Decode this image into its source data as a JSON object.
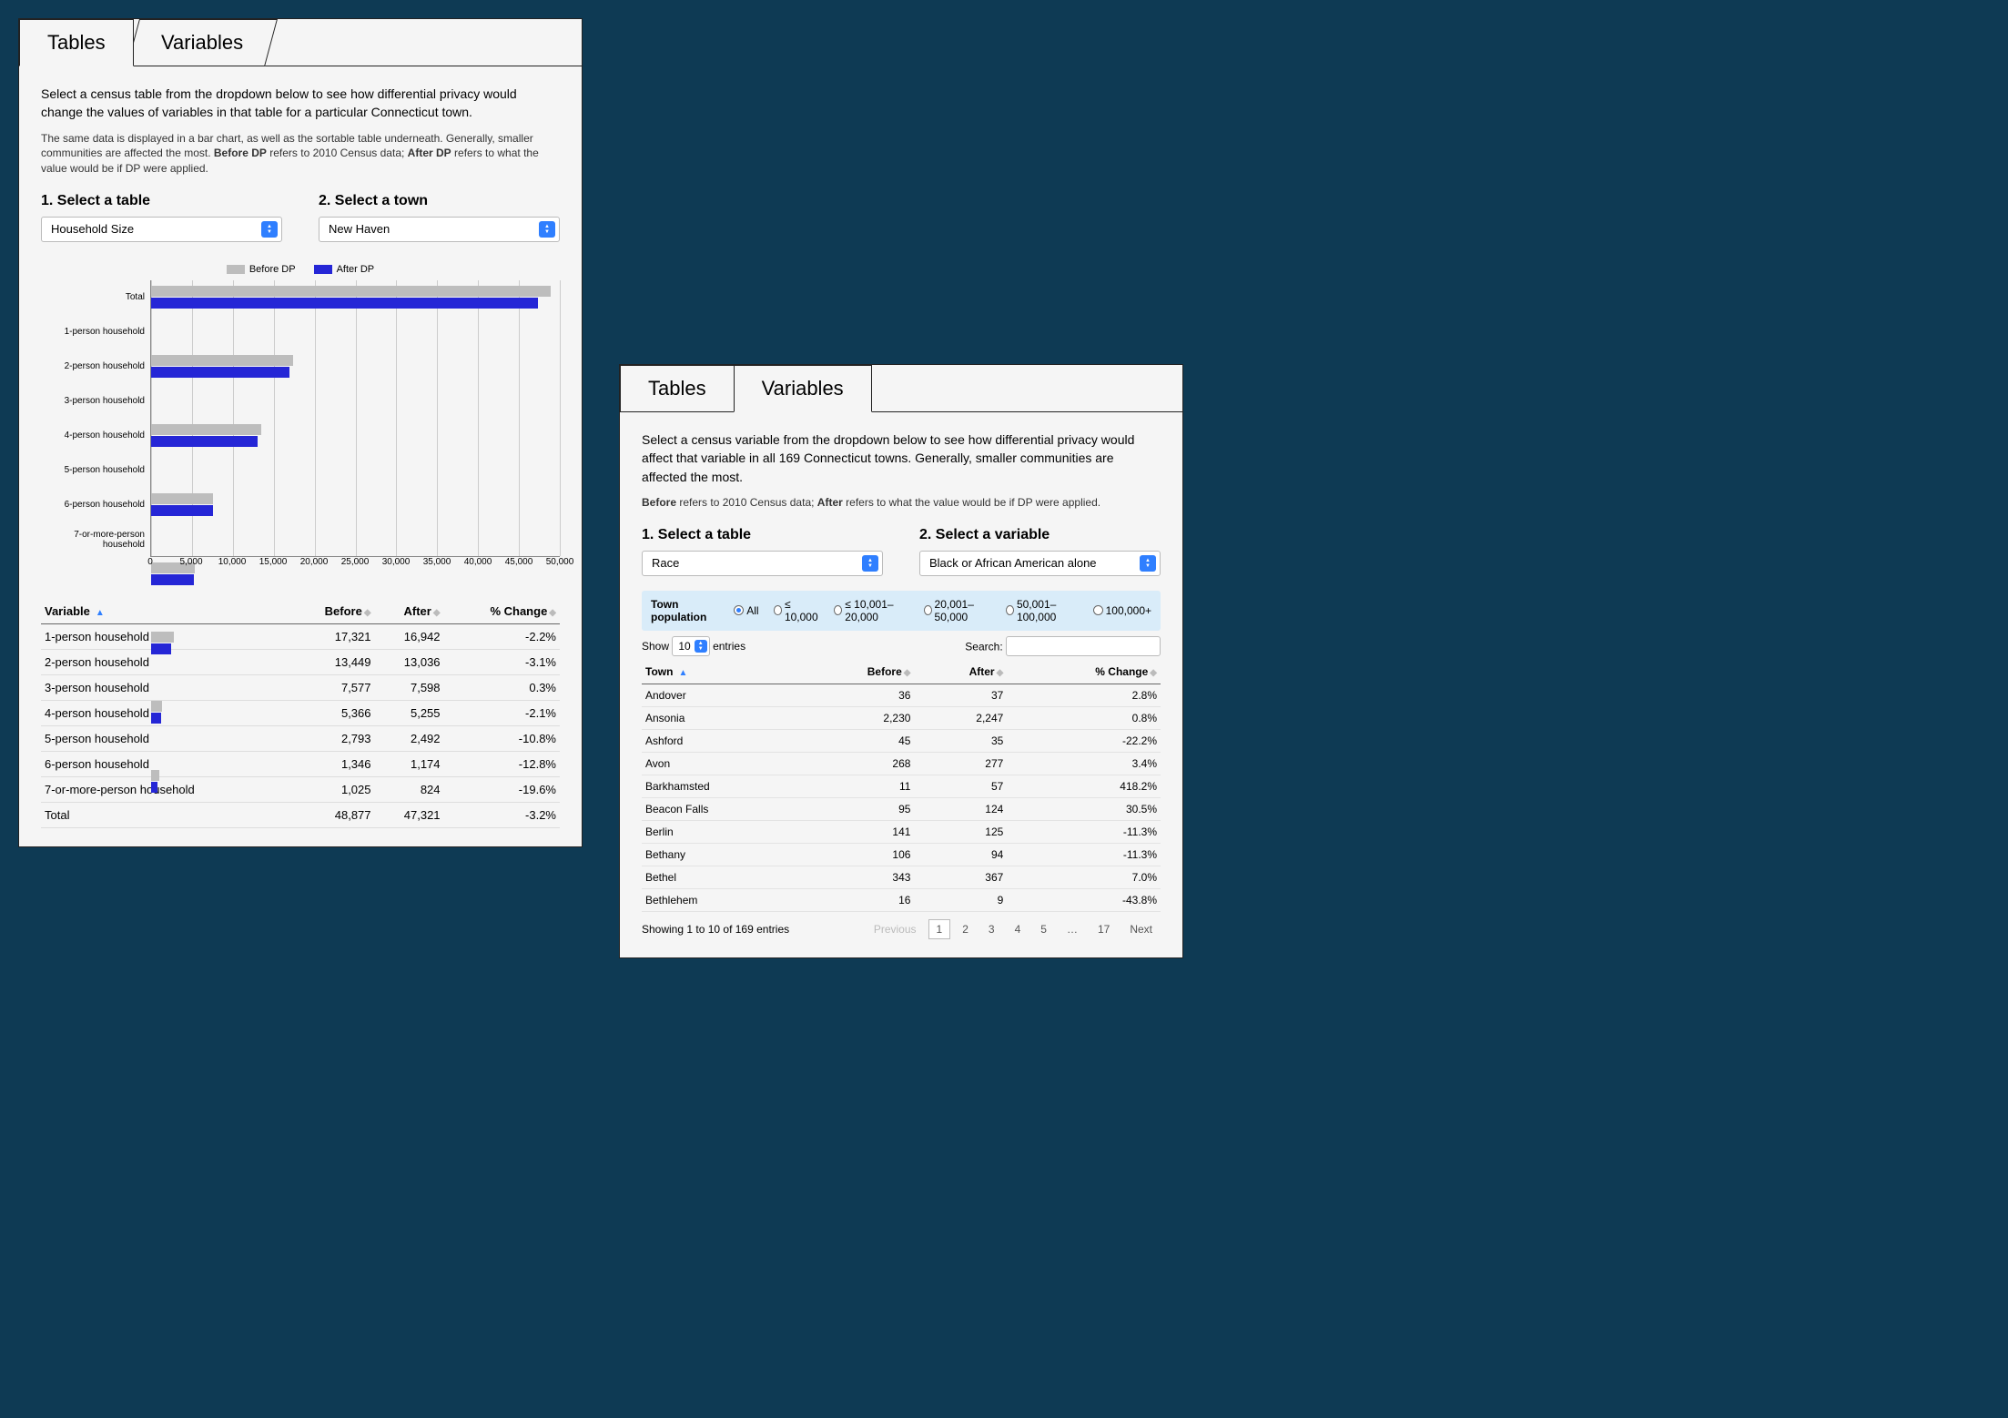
{
  "colors": {
    "page_bg": "#0e3a54",
    "panel_bg": "#f5f5f5",
    "before": "#bdbdbd",
    "after": "#2526d6",
    "accent": "#2f7fff",
    "grid": "#cccccc",
    "filter_bg": "#d9ecf9"
  },
  "left": {
    "tabs": {
      "active": "Tables",
      "inactive": "Variables"
    },
    "intro": "Select a census table from the dropdown below to see how differential privacy would change the values of variables in that table for a particular Connecticut town.",
    "intro_sub_pre": "The same data is displayed in a bar chart, as well as the sortable table underneath. Generally, smaller communities are affected the most. ",
    "intro_sub_b1": "Before DP",
    "intro_sub_mid": " refers to 2010 Census data; ",
    "intro_sub_b2": "After DP",
    "intro_sub_post": " refers to what the value would be if DP were applied.",
    "step1": "1. Select a table",
    "step2": "2. Select a town",
    "select_table": "Household Size",
    "select_town": "New Haven",
    "legend": {
      "before": "Before DP",
      "after": "After DP"
    },
    "chart": {
      "type": "bar-horizontal-grouped",
      "xmax": 50000,
      "xtick_step": 5000,
      "xticks": [
        "0",
        "5,000",
        "10,000",
        "15,000",
        "20,000",
        "25,000",
        "30,000",
        "35,000",
        "40,000",
        "45,000",
        "50,000"
      ],
      "rows": [
        {
          "label": "Total",
          "before": 48877,
          "after": 47321
        },
        {
          "label": "1-person household",
          "before": 17321,
          "after": 16942
        },
        {
          "label": "2-person household",
          "before": 13449,
          "after": 13036
        },
        {
          "label": "3-person household",
          "before": 7577,
          "after": 7598
        },
        {
          "label": "4-person household",
          "before": 5366,
          "after": 5255
        },
        {
          "label": "5-person household",
          "before": 2793,
          "after": 2492
        },
        {
          "label": "6-person household",
          "before": 1346,
          "after": 1174
        },
        {
          "label": "7-or-more-person household",
          "before": 1025,
          "after": 824
        }
      ]
    },
    "table": {
      "columns": [
        "Variable",
        "Before",
        "After",
        "% Change"
      ],
      "sort_col": 0,
      "rows": [
        [
          "1-person household",
          "17,321",
          "16,942",
          "-2.2%"
        ],
        [
          "2-person household",
          "13,449",
          "13,036",
          "-3.1%"
        ],
        [
          "3-person household",
          "7,577",
          "7,598",
          "0.3%"
        ],
        [
          "4-person household",
          "5,366",
          "5,255",
          "-2.1%"
        ],
        [
          "5-person household",
          "2,793",
          "2,492",
          "-10.8%"
        ],
        [
          "6-person household",
          "1,346",
          "1,174",
          "-12.8%"
        ],
        [
          "7-or-more-person household",
          "1,025",
          "824",
          "-19.6%"
        ],
        [
          "Total",
          "48,877",
          "47,321",
          "-3.2%"
        ]
      ]
    }
  },
  "right": {
    "tabs": {
      "inactive": "Tables",
      "active": "Variables"
    },
    "intro": "Select a census variable from the dropdown below to see how differential privacy would affect that variable in all 169 Connecticut towns. Generally, smaller communities are affected the most.",
    "intro_sub_b1": "Before",
    "intro_sub_mid": " refers to 2010 Census data; ",
    "intro_sub_b2": "After",
    "intro_sub_post": " refers to what the value would be if DP were applied.",
    "step1": "1. Select a table",
    "step2": "2. Select a variable",
    "select_table": "Race",
    "select_variable": "Black or African American alone",
    "filter": {
      "label": "Town population",
      "options": [
        "All",
        "≤ 10,000",
        "≤ 10,001–20,000",
        "20,001–50,000",
        "50,001–100,000",
        "100,000+"
      ],
      "selected": 0
    },
    "show_label_pre": "Show",
    "show_value": "10",
    "show_label_post": "entries",
    "search_label": "Search:",
    "table": {
      "columns": [
        "Town",
        "Before",
        "After",
        "% Change"
      ],
      "sort_col": 0,
      "rows": [
        [
          "Andover",
          "36",
          "37",
          "2.8%"
        ],
        [
          "Ansonia",
          "2,230",
          "2,247",
          "0.8%"
        ],
        [
          "Ashford",
          "45",
          "35",
          "-22.2%"
        ],
        [
          "Avon",
          "268",
          "277",
          "3.4%"
        ],
        [
          "Barkhamsted",
          "11",
          "57",
          "418.2%"
        ],
        [
          "Beacon Falls",
          "95",
          "124",
          "30.5%"
        ],
        [
          "Berlin",
          "141",
          "125",
          "-11.3%"
        ],
        [
          "Bethany",
          "106",
          "94",
          "-11.3%"
        ],
        [
          "Bethel",
          "343",
          "367",
          "7.0%"
        ],
        [
          "Bethlehem",
          "16",
          "9",
          "-43.8%"
        ]
      ]
    },
    "pager": {
      "info": "Showing 1 to 10 of 169 entries",
      "prev": "Previous",
      "pages": [
        "1",
        "2",
        "3",
        "4",
        "5",
        "…",
        "17"
      ],
      "current": 0,
      "next": "Next"
    }
  }
}
